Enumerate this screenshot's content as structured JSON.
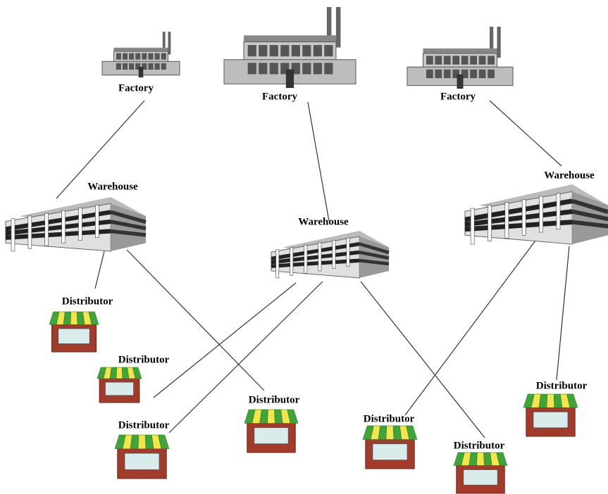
{
  "nodes": [
    {
      "label": "Factory"
    },
    {
      "label": "Factory"
    },
    {
      "label": "Factory"
    },
    {
      "label": "Warehouse"
    },
    {
      "label": "Warehouse"
    },
    {
      "label": "Warehouse"
    },
    {
      "label": "Distributor"
    },
    {
      "label": "Distributor"
    },
    {
      "label": "Distributor"
    },
    {
      "label": "Distributor"
    },
    {
      "label": "Distributor"
    },
    {
      "label": "Distributor"
    },
    {
      "label": "Distributor"
    }
  ]
}
